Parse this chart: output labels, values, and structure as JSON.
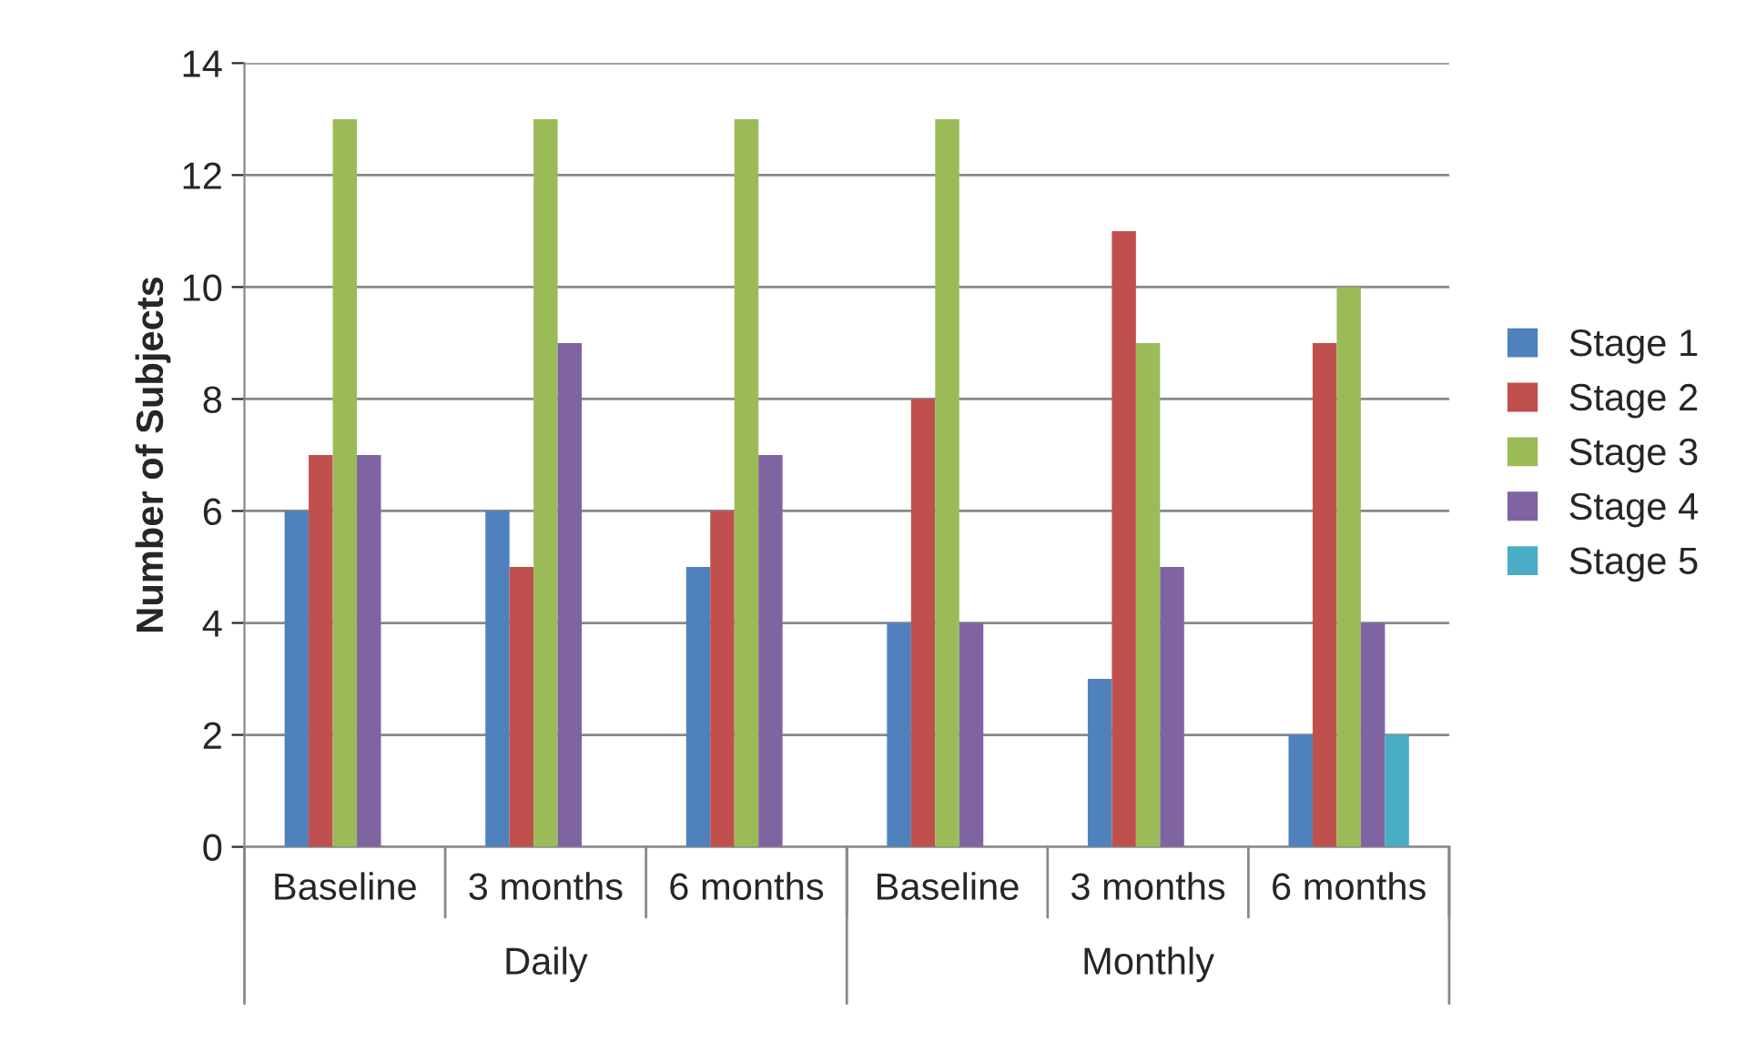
{
  "chart_data": {
    "type": "bar",
    "ylabel": "Number of Subjects",
    "categories": [
      "Baseline",
      "3 months",
      "6 months",
      "Baseline",
      "3 months",
      "6 months"
    ],
    "annotations": [
      "Daily",
      "Monthly"
    ],
    "series": [
      {
        "name": "Stage 1",
        "color": "#4f81bd",
        "values": [
          6,
          6,
          5,
          4,
          3,
          2
        ]
      },
      {
        "name": "Stage 2",
        "color": "#c0504d",
        "values": [
          7,
          5,
          6,
          8,
          11,
          9
        ]
      },
      {
        "name": "Stage 3",
        "color": "#9bbb59",
        "values": [
          13,
          13,
          13,
          13,
          9,
          10
        ]
      },
      {
        "name": "Stage 4",
        "color": "#8064a2",
        "values": [
          7,
          9,
          7,
          4,
          5,
          4
        ]
      },
      {
        "name": "Stage 5",
        "color": "#4bacc6",
        "values": [
          null,
          null,
          null,
          null,
          null,
          2
        ]
      }
    ],
    "ylim": [
      0,
      14
    ],
    "yticks": [
      0,
      2,
      4,
      6,
      8,
      10,
      12,
      14
    ],
    "grid": "y",
    "legend": "right"
  }
}
